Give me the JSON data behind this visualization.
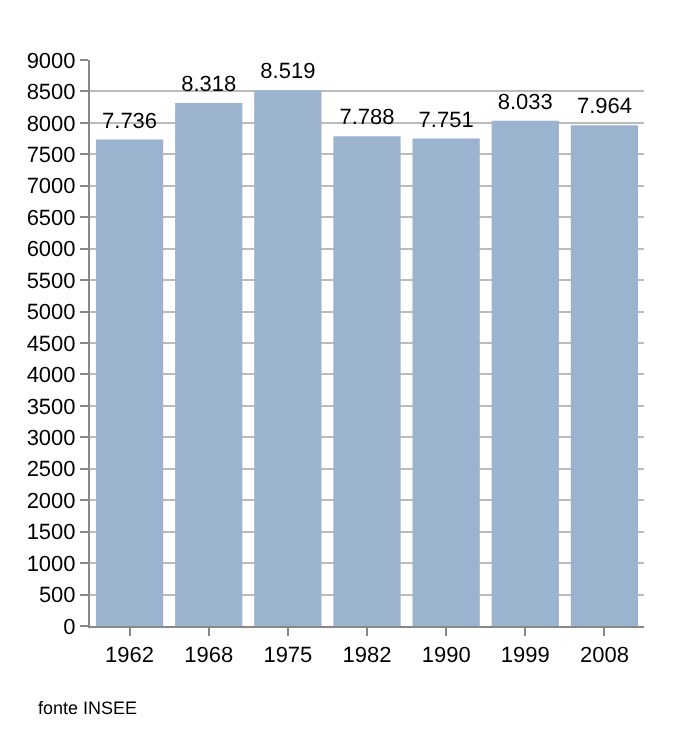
{
  "chart_data": {
    "type": "bar",
    "categories": [
      "1962",
      "1968",
      "1975",
      "1982",
      "1990",
      "1999",
      "2008"
    ],
    "values": [
      7736,
      8318,
      8519,
      7788,
      7751,
      8033,
      7964
    ],
    "value_labels": [
      "7.736",
      "8.318",
      "8.519",
      "7.788",
      "7.751",
      "8.033",
      "7.964"
    ],
    "color": "#9bb3cf",
    "ylim": [
      0,
      9000
    ],
    "yticks": [
      0,
      500,
      1000,
      1500,
      2000,
      2500,
      3000,
      3500,
      4000,
      4500,
      5000,
      5500,
      6000,
      6500,
      7000,
      7500,
      8000,
      8500,
      9000
    ],
    "grid": "y",
    "legend": false,
    "annotations": [
      "fonte INSEE"
    ]
  }
}
